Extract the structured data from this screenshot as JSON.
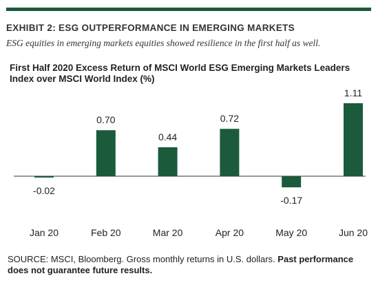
{
  "exhibit": {
    "title": "EXHIBIT 2: ESG OUTPERFORMANCE IN EMERGING MARKETS",
    "subtitle": "ESG equities in emerging markets equities showed resilience in the first half as well."
  },
  "chart_data": {
    "type": "bar",
    "title": "First Half 2020 Excess Return of MSCI World ESG Emerging Markets Leaders Index over MSCI World Index (%)",
    "categories": [
      "Jan 20",
      "Feb 20",
      "Mar 20",
      "Apr 20",
      "May 20",
      "Jun 20"
    ],
    "values": [
      -0.02,
      0.7,
      0.44,
      0.72,
      -0.17,
      1.11
    ],
    "value_labels": [
      "-0.02",
      "0.70",
      "0.44",
      "0.72",
      "-0.17",
      "1.11"
    ],
    "ylim": [
      -0.4,
      1.2
    ],
    "bar_color": "#1c5a3c",
    "grid": false,
    "data_labels": true
  },
  "source": {
    "text": "SOURCE: MSCI, Bloomberg. Gross monthly returns in U.S. dollars. ",
    "bold_text": "Past performance does not guarantee future results."
  },
  "colors": {
    "accent": "#1c5a3c",
    "axis": "#333333"
  }
}
